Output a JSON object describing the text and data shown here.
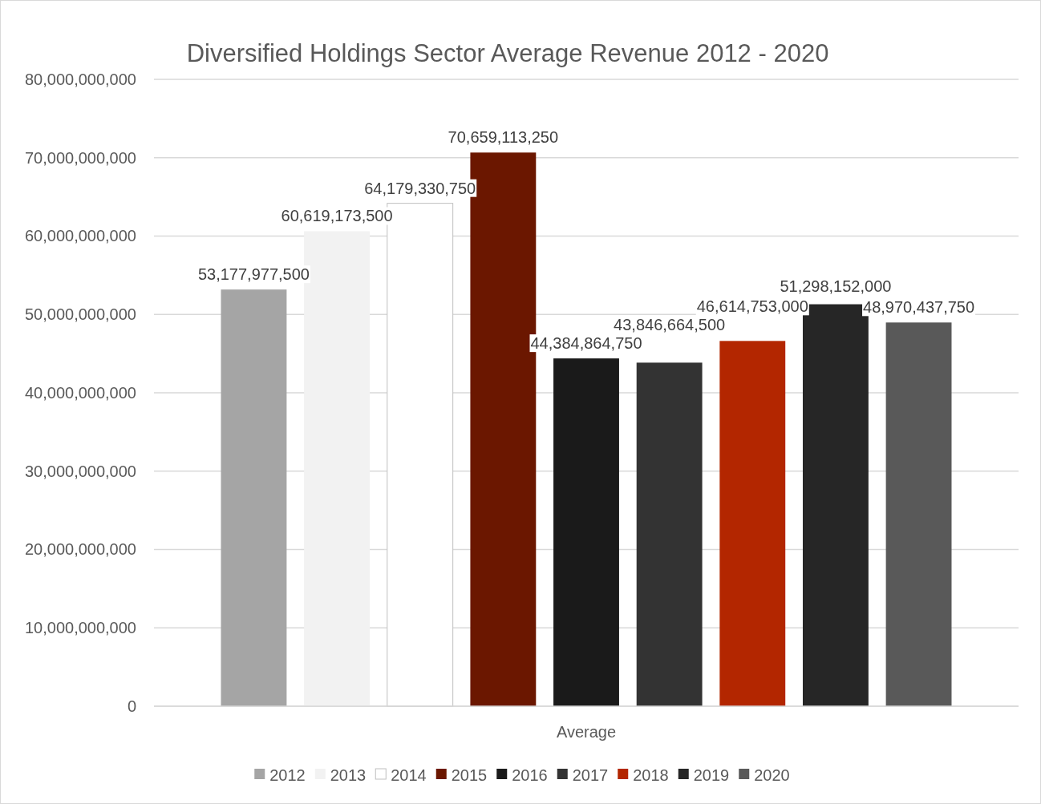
{
  "chart_data": {
    "type": "bar",
    "title": "Diversified Holdings Sector Average Revenue 2012 - 2020",
    "categories": [
      "Average"
    ],
    "series": [
      {
        "name": "2012",
        "color": "#a5a5a5",
        "values": [
          53177977500
        ],
        "value_labels": [
          "53,177,977,500"
        ]
      },
      {
        "name": "2013",
        "color": "#f2f2f2",
        "values": [
          60619173500
        ],
        "value_labels": [
          "60,619,173,500"
        ]
      },
      {
        "name": "2014",
        "color": "#ffffff",
        "values": [
          64179330750
        ],
        "value_labels": [
          "64,179,330,750"
        ]
      },
      {
        "name": "2015",
        "color": "#6b1700",
        "values": [
          70659113250
        ],
        "value_labels": [
          "70,659,113,250"
        ]
      },
      {
        "name": "2016",
        "color": "#1a1a1a",
        "values": [
          44384864750
        ],
        "value_labels": [
          "44,384,864,750"
        ]
      },
      {
        "name": "2017",
        "color": "#333333",
        "values": [
          43846664500
        ],
        "value_labels": [
          "43,846,664,500"
        ]
      },
      {
        "name": "2018",
        "color": "#b32600",
        "values": [
          46614753000
        ],
        "value_labels": [
          "46,614,753,000"
        ]
      },
      {
        "name": "2019",
        "color": "#262626",
        "values": [
          51298152000
        ],
        "value_labels": [
          "51,298,152,000"
        ]
      },
      {
        "name": "2020",
        "color": "#595959",
        "values": [
          48970437750
        ],
        "value_labels": [
          "48,970,437,750"
        ]
      }
    ],
    "ylim": [
      0,
      80000000000
    ],
    "yticks": [
      {
        "value": 0,
        "label": "0"
      },
      {
        "value": 10000000000,
        "label": "10,000,000,000"
      },
      {
        "value": 20000000000,
        "label": "20,000,000,000"
      },
      {
        "value": 30000000000,
        "label": "30,000,000,000"
      },
      {
        "value": 40000000000,
        "label": "40,000,000,000"
      },
      {
        "value": 50000000000,
        "label": "50,000,000,000"
      },
      {
        "value": 60000000000,
        "label": "60,000,000,000"
      },
      {
        "value": 70000000000,
        "label": "70,000,000,000"
      },
      {
        "value": 80000000000,
        "label": "80,000,000,000"
      }
    ],
    "grid": "y",
    "legend": "bottom"
  }
}
